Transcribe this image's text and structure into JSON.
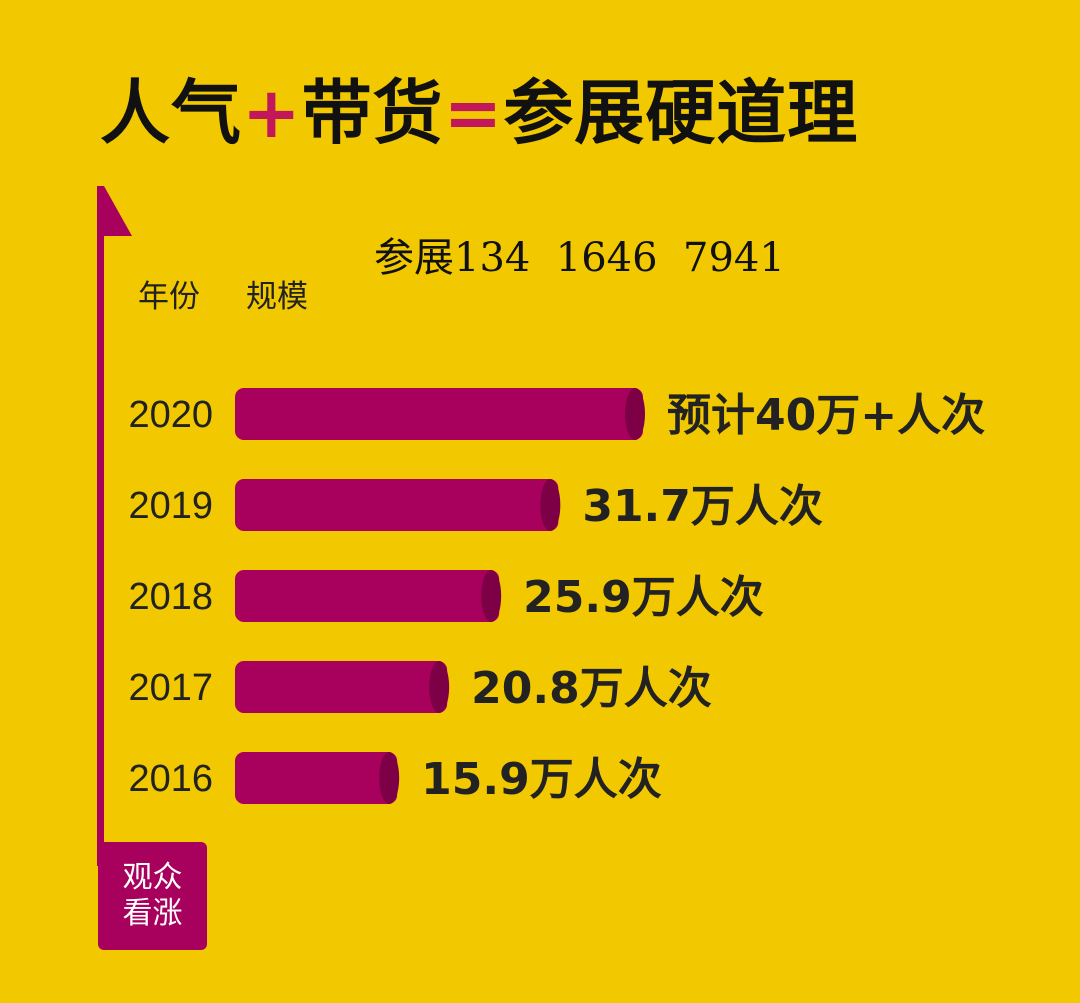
{
  "title": {
    "part1": "人气",
    "op1": "+",
    "part2": "带货",
    "op2": "=",
    "part3": "参展硬道理"
  },
  "phone_text": "参展134  1646  7941",
  "column_headers": {
    "year": "年份",
    "scale": "规模"
  },
  "axis_badge": {
    "line1": "观众",
    "line2": "看涨"
  },
  "colors": {
    "background": "#f2c900",
    "bar": "#a8005d",
    "bar_cap": "#7d0046",
    "text": "#222222"
  },
  "chart_data": {
    "type": "bar",
    "orientation": "horizontal",
    "categories": [
      "2020",
      "2019",
      "2018",
      "2017",
      "2016"
    ],
    "values": [
      40,
      31.7,
      25.9,
      20.8,
      15.9
    ],
    "value_labels": [
      "预计40万+人次",
      "31.7万人次",
      "25.9万人次",
      "20.8万人次",
      "15.9万人次"
    ],
    "unit": "万人次",
    "xlim": [
      0,
      40
    ]
  }
}
